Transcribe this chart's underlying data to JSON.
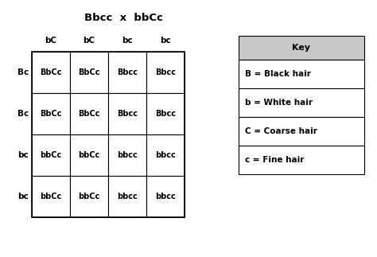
{
  "title": "Bbcc  x  bbCc",
  "col_headers": [
    "bC",
    "bC",
    "bc",
    "bc"
  ],
  "row_headers": [
    "Bc",
    "Bc",
    "bc",
    "bc"
  ],
  "grid": [
    [
      "BbCc",
      "BbCc",
      "Bbcc",
      "Bbcc"
    ],
    [
      "BbCc",
      "BbCc",
      "Bbcc",
      "Bbcc"
    ],
    [
      "bbCc",
      "bbCc",
      "bbcc",
      "bbcc"
    ],
    [
      "bbCc",
      "bbCc",
      "bbcc",
      "bbcc"
    ]
  ],
  "key_title": "Key",
  "key_entries": [
    "B = Black hair",
    "b = White hair",
    "C = Coarse hair",
    "c = Fine hair"
  ],
  "bg_color": "#ffffff",
  "grid_color": "#000000",
  "key_header_bg": "#c8c8c8",
  "key_entry_bg": "#ffffff",
  "text_color": "#000000",
  "title_fontsize": 9.5,
  "header_fontsize": 7.5,
  "cell_fontsize": 7,
  "key_fontsize": 7.5,
  "key_title_fontsize": 8
}
